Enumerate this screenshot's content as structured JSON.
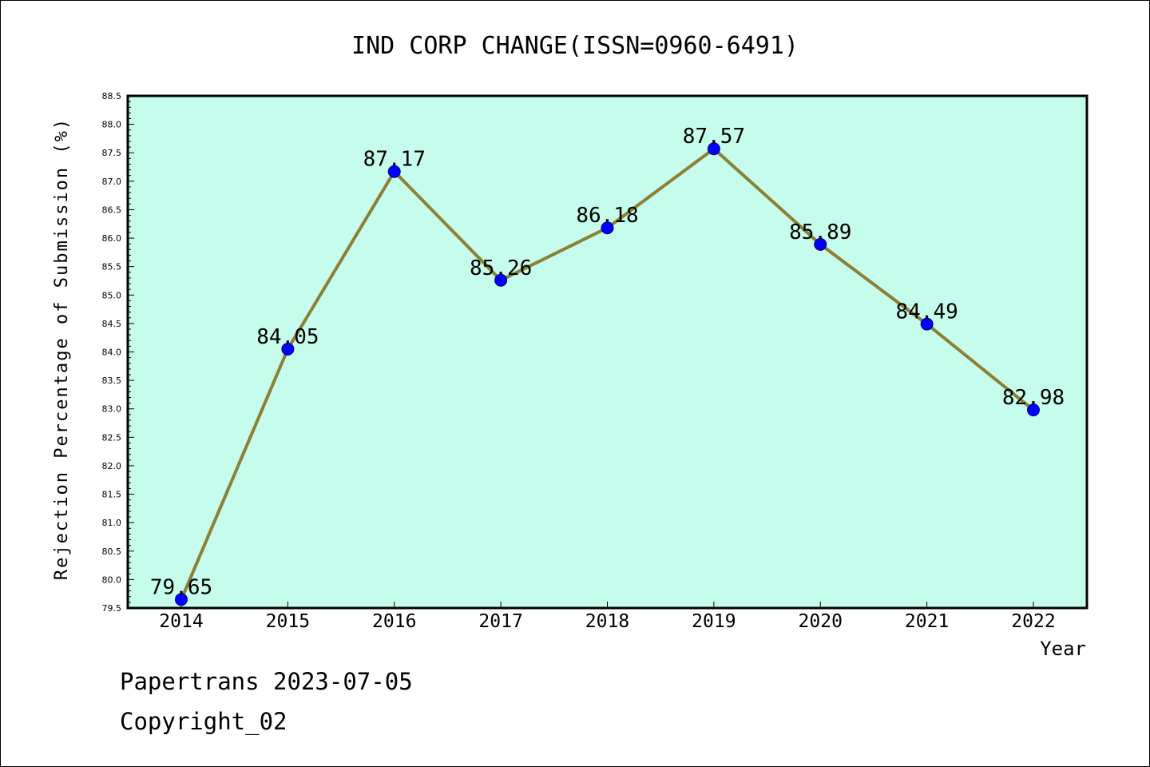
{
  "chart_data": {
    "type": "line",
    "title": "IND CORP CHANGE(ISSN=0960-6491)",
    "xlabel": "Year",
    "ylabel": "Rejection Percentage of Submission (%)",
    "x": [
      "2014",
      "2015",
      "2016",
      "2017",
      "2018",
      "2019",
      "2020",
      "2021",
      "2022"
    ],
    "series": [
      {
        "values": [
          79.65,
          84.05,
          87.17,
          85.26,
          86.18,
          87.57,
          85.89,
          84.49,
          82.98
        ],
        "labels": [
          "79.65",
          "84.05",
          "87.17",
          "85.26",
          "86.18",
          "87.57",
          "85.89",
          "84.49",
          "82.98"
        ]
      }
    ],
    "ylim": [
      79.5,
      88.5
    ],
    "yticks": [
      "79.5",
      "80.0",
      "80.5",
      "81.0",
      "81.5",
      "82.0",
      "82.5",
      "83.0",
      "83.5",
      "84.0",
      "84.5",
      "85.0",
      "85.5",
      "86.0",
      "86.5",
      "87.0",
      "87.5",
      "88.0",
      "88.5"
    ],
    "grid": false,
    "colors": {
      "plot_background": "#c6fcec",
      "line": "#8b8036",
      "marker": "#0000ff",
      "axis": "#000000"
    }
  },
  "footer": {
    "date_text": "Papertrans 2023-07-05",
    "copyright_text": "Copyright_02"
  }
}
